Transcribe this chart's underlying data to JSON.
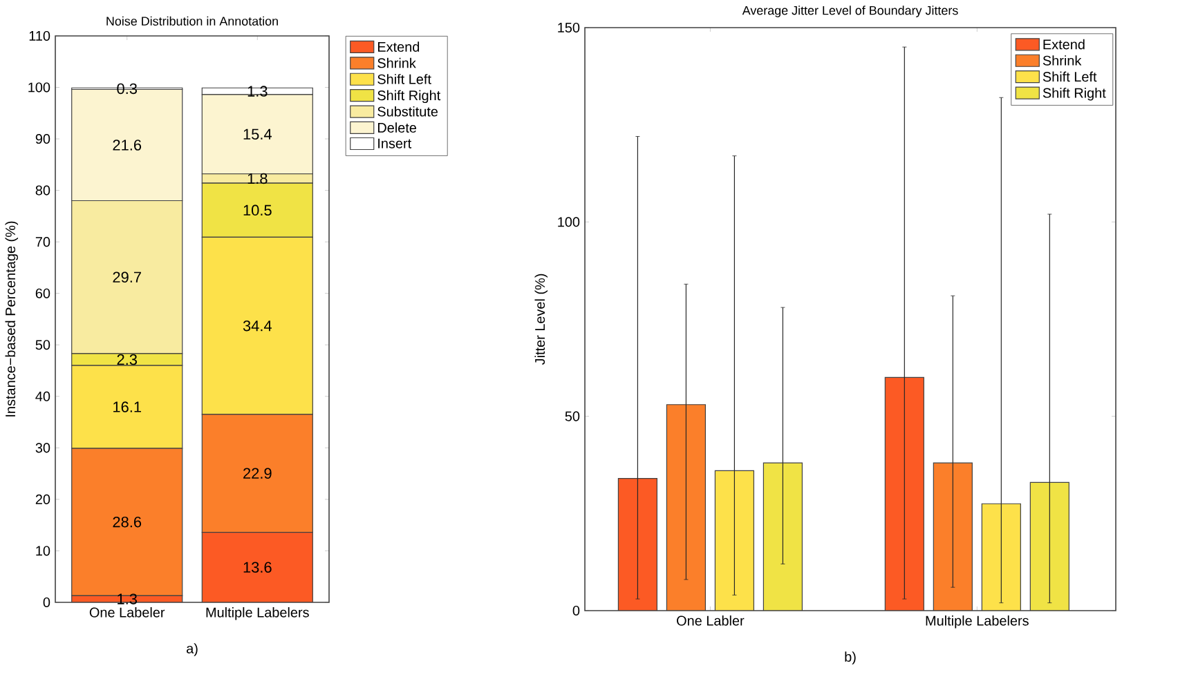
{
  "chart_data": [
    {
      "type": "bar",
      "title": "Noise Distribution in Annotation",
      "xlabel": "a)",
      "ylabel": "Instance−based Percentage (%)",
      "stacked": true,
      "data_labels": true,
      "legend": "top right",
      "categories": [
        "One Labeler",
        "Multiple Labelers"
      ],
      "ylim": [
        0,
        110
      ],
      "yticks": [
        0,
        10,
        20,
        30,
        40,
        50,
        60,
        70,
        80,
        90,
        100,
        110
      ],
      "series": [
        {
          "name": "Extend",
          "color": "#fc5a24",
          "values": [
            1.3,
            13.6
          ]
        },
        {
          "name": "Shrink",
          "color": "#fb7f2a",
          "values": [
            28.6,
            22.9
          ]
        },
        {
          "name": "Shift Left",
          "color": "#fde14a",
          "values": [
            16.1,
            34.4
          ]
        },
        {
          "name": "Shift Right",
          "color": "#f0e345",
          "values": [
            2.3,
            10.5
          ]
        },
        {
          "name": "Substitute",
          "color": "#f8eba0",
          "values": [
            29.7,
            1.8
          ]
        },
        {
          "name": "Delete",
          "color": "#fcf4d0",
          "values": [
            21.6,
            15.4
          ]
        },
        {
          "name": "Insert",
          "color": "#ffffff",
          "values": [
            0.3,
            1.3
          ]
        }
      ]
    },
    {
      "type": "bar",
      "title": "Average Jitter Level of Boundary Jitters",
      "xlabel": "b)",
      "ylabel": "Jitter Level (%)",
      "legend": "top right",
      "categories": [
        "One Labler",
        "Multiple Labelers"
      ],
      "ylim": [
        0,
        150
      ],
      "yticks": [
        0,
        50,
        100,
        150
      ],
      "series": [
        {
          "name": "Extend",
          "color": "#fc5a24",
          "values": [
            34,
            60
          ],
          "errors": [
            [
              3,
              122
            ],
            [
              3,
              145
            ]
          ]
        },
        {
          "name": "Shrink",
          "color": "#fb7f2a",
          "values": [
            53,
            38
          ],
          "errors": [
            [
              8,
              84
            ],
            [
              6,
              81
            ]
          ]
        },
        {
          "name": "Shift Left",
          "color": "#fde14a",
          "values": [
            36,
            27.5
          ],
          "errors": [
            [
              4,
              117
            ],
            [
              2,
              132
            ]
          ]
        },
        {
          "name": "Shift Right",
          "color": "#f0e345",
          "values": [
            38,
            33
          ],
          "errors": [
            [
              12,
              78
            ],
            [
              2,
              102
            ]
          ]
        }
      ]
    }
  ]
}
